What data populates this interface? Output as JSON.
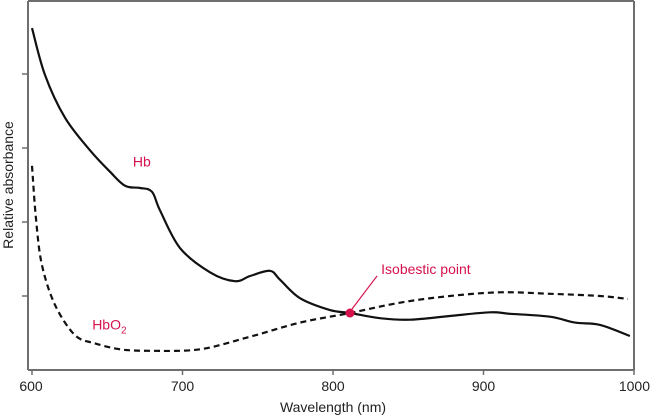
{
  "chart_data": {
    "type": "line",
    "title": "",
    "xlabel": "Wavelength (nm)",
    "ylabel": "Relative absorbance",
    "xlim": [
      600,
      1000
    ],
    "ylim": [
      0,
      5
    ],
    "xticks": [
      600,
      700,
      800,
      900,
      1000
    ],
    "xtick_labels": [
      "600",
      "700",
      "800",
      "900",
      "1000"
    ],
    "yticks": [
      1,
      2,
      3,
      4
    ],
    "ytick_labels": [],
    "grid": false,
    "series": [
      {
        "name": "Hb",
        "style": "solid",
        "color": "#111111",
        "x": [
          600,
          608.6,
          621.9,
          638.5,
          651.8,
          661.8,
          671.8,
          679.7,
          685.0,
          698.3,
          718.3,
          734.9,
          744.9,
          758.1,
          764.8,
          778.1,
          798.0,
          811.3,
          831.2,
          851.2,
          877.7,
          904.3,
          917.6,
          944.2,
          960.8,
          977.4,
          997.3
        ],
        "y": [
          4.62,
          3.99,
          3.41,
          2.97,
          2.68,
          2.49,
          2.46,
          2.41,
          2.16,
          1.65,
          1.32,
          1.2,
          1.27,
          1.34,
          1.22,
          0.97,
          0.81,
          0.77,
          0.7,
          0.68,
          0.73,
          0.78,
          0.76,
          0.72,
          0.64,
          0.61,
          0.46
        ]
      },
      {
        "name": "HbO2",
        "style": "dashed",
        "color": "#111111",
        "x": [
          600,
          602.7,
          606.6,
          615.3,
          628.6,
          641.9,
          658.5,
          678.4,
          711.6,
          744.9,
          778.1,
          811.3,
          844.5,
          877.7,
          911.0,
          944.2,
          977.4,
          996.0
        ],
        "y": [
          2.76,
          2.03,
          1.42,
          0.88,
          0.47,
          0.36,
          0.28,
          0.26,
          0.28,
          0.45,
          0.64,
          0.77,
          0.91,
          1.0,
          1.05,
          1.03,
          1.0,
          0.96
        ]
      }
    ],
    "annotations": [
      {
        "text": "Hb",
        "series": "Hb",
        "x": 667,
        "y": 2.75
      },
      {
        "text_main": "HbO",
        "text_sub": "2",
        "series": "HbO2",
        "x": 640,
        "y": 0.55
      },
      {
        "text": "Isobestic point",
        "point_x": 811.3,
        "point_y": 0.77,
        "label_x": 832,
        "label_y": 1.3
      }
    ],
    "colors": {
      "annotation": "#d6124d",
      "axis": "#6e6e6e",
      "text": "#222222"
    }
  }
}
